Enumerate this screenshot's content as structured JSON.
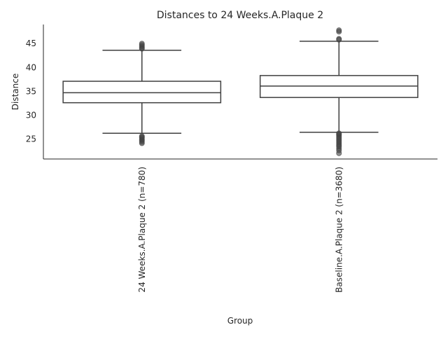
{
  "chart_data": {
    "type": "box",
    "title": "Distances to 24 Weeks.A.Plaque 2",
    "xlabel": "Group",
    "ylabel": "Distance",
    "ylim": [
      20.8,
      49.0
    ],
    "yticks": [
      25,
      30,
      35,
      40,
      45
    ],
    "grid": false,
    "legend": "none",
    "colors": {
      "box_edge": "#3f3f3f",
      "box_fill": "#ffffff",
      "outlier": "#444444",
      "spine": "#262626"
    },
    "categories": [
      "24 Weeks.A.Plaque 2 (n=780)",
      "Baseline.A.Plaque 2 (n=3680)"
    ],
    "boxes": [
      {
        "category": "24 Weeks.A.Plaque 2 (n=780)",
        "whisker_low": 26.2,
        "q1": 32.6,
        "median": 34.7,
        "q3": 37.1,
        "whisker_high": 43.6,
        "outliers": [
          24.1,
          24.4,
          24.7,
          24.9,
          25.2,
          25.4,
          25.6,
          43.9,
          44.1,
          44.4,
          44.7,
          45.0
        ]
      },
      {
        "category": "Baseline.A.Plaque 2 (n=3680)",
        "whisker_low": 26.4,
        "q1": 33.7,
        "median": 36.1,
        "q3": 38.3,
        "whisker_high": 45.5,
        "outliers": [
          22.0,
          22.6,
          23.0,
          23.4,
          23.7,
          24.0,
          24.3,
          24.6,
          24.9,
          25.2,
          25.5,
          25.8,
          26.0,
          26.2,
          45.8,
          46.0,
          47.5,
          47.8
        ]
      }
    ]
  }
}
